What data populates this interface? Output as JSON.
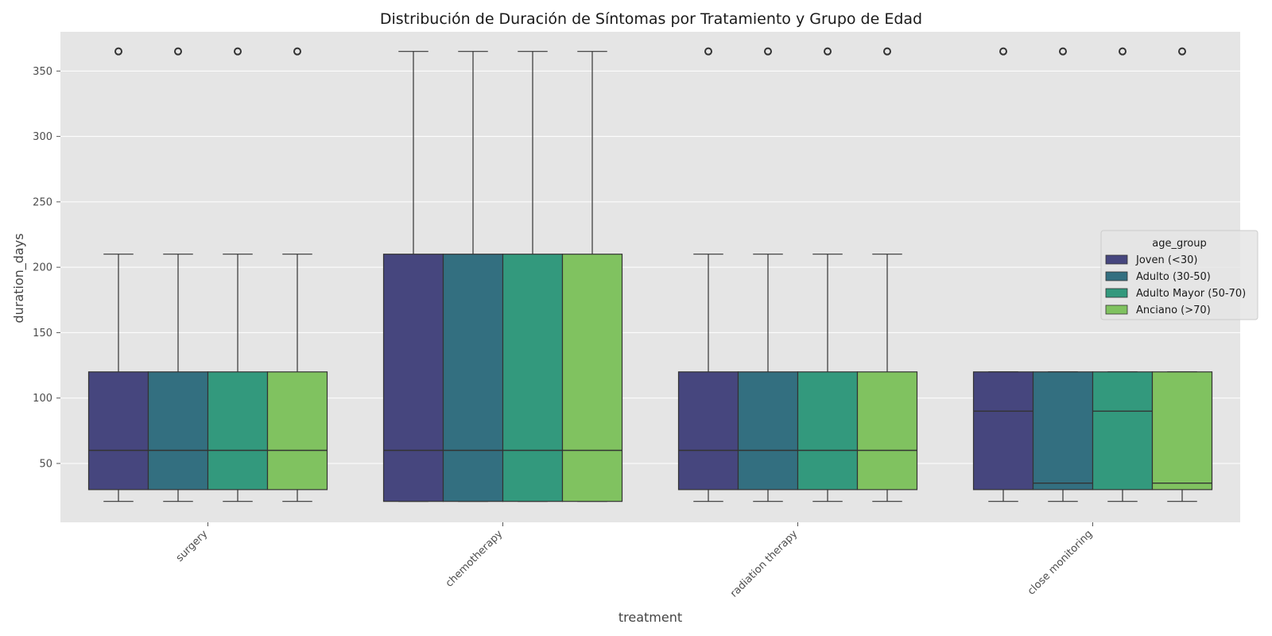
{
  "chart_data": {
    "type": "box",
    "title": "Distribución de Duración de Síntomas por Tratamiento y Grupo de Edad",
    "xlabel": "treatment",
    "ylabel": "duration_days",
    "ylim": [
      5,
      380
    ],
    "yticks": [
      50,
      100,
      150,
      200,
      250,
      300,
      350
    ],
    "categories": [
      "surgery",
      "chemotherapy",
      "radiation therapy",
      "close monitoring"
    ],
    "grid": true,
    "legend": {
      "title": "age_group",
      "placement": "center-right"
    },
    "series": [
      {
        "name": "Joven (<30)",
        "color": "#46467e",
        "boxes": [
          {
            "whisker_low": 21,
            "q1": 30,
            "median": 60,
            "q3": 120,
            "whisker_high": 210,
            "outliers": [
              365
            ]
          },
          {
            "whisker_low": 21,
            "q1": 21,
            "median": 60,
            "q3": 210,
            "whisker_high": 365,
            "outliers": []
          },
          {
            "whisker_low": 21,
            "q1": 30,
            "median": 60,
            "q3": 120,
            "whisker_high": 210,
            "outliers": [
              365
            ]
          },
          {
            "whisker_low": 21,
            "q1": 30,
            "median": 90,
            "q3": 120,
            "whisker_high": 120,
            "outliers": [
              365
            ]
          }
        ]
      },
      {
        "name": "Adulto (30-50)",
        "color": "#336f80",
        "boxes": [
          {
            "whisker_low": 21,
            "q1": 30,
            "median": 60,
            "q3": 120,
            "whisker_high": 210,
            "outliers": [
              365
            ]
          },
          {
            "whisker_low": 21,
            "q1": 21,
            "median": 60,
            "q3": 210,
            "whisker_high": 365,
            "outliers": []
          },
          {
            "whisker_low": 21,
            "q1": 30,
            "median": 60,
            "q3": 120,
            "whisker_high": 210,
            "outliers": [
              365
            ]
          },
          {
            "whisker_low": 21,
            "q1": 30,
            "median": 35,
            "q3": 120,
            "whisker_high": 120,
            "outliers": [
              365
            ]
          }
        ]
      },
      {
        "name": "Adulto Mayor (50-70)",
        "color": "#33997d",
        "boxes": [
          {
            "whisker_low": 21,
            "q1": 30,
            "median": 60,
            "q3": 120,
            "whisker_high": 210,
            "outliers": [
              365
            ]
          },
          {
            "whisker_low": 21,
            "q1": 21,
            "median": 60,
            "q3": 210,
            "whisker_high": 365,
            "outliers": []
          },
          {
            "whisker_low": 21,
            "q1": 30,
            "median": 60,
            "q3": 120,
            "whisker_high": 210,
            "outliers": [
              365
            ]
          },
          {
            "whisker_low": 21,
            "q1": 30,
            "median": 90,
            "q3": 120,
            "whisker_high": 120,
            "outliers": [
              365
            ]
          }
        ]
      },
      {
        "name": "Anciano (>70)",
        "color": "#80c260",
        "boxes": [
          {
            "whisker_low": 21,
            "q1": 30,
            "median": 60,
            "q3": 120,
            "whisker_high": 210,
            "outliers": [
              365
            ]
          },
          {
            "whisker_low": 21,
            "q1": 21,
            "median": 60,
            "q3": 210,
            "whisker_high": 365,
            "outliers": []
          },
          {
            "whisker_low": 21,
            "q1": 30,
            "median": 60,
            "q3": 120,
            "whisker_high": 210,
            "outliers": [
              365
            ]
          },
          {
            "whisker_low": 21,
            "q1": 30,
            "median": 35,
            "q3": 120,
            "whisker_high": 120,
            "outliers": [
              365
            ]
          }
        ]
      }
    ]
  }
}
